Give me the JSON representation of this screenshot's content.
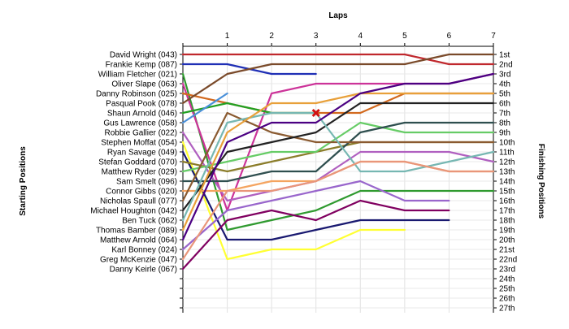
{
  "chart_data": {
    "type": "line",
    "title": "",
    "xlabel": "Laps",
    "ylabel_left": "Starting Positions",
    "ylabel_right": "Finishing Positions",
    "x": [
      0,
      1,
      2,
      3,
      4,
      5,
      6,
      7
    ],
    "x_tick_labels": [
      "1",
      "2",
      "3",
      "4",
      "5",
      "6",
      "7"
    ],
    "xlim": [
      0,
      7
    ],
    "ylim": [
      1,
      27
    ],
    "grid": true,
    "finishing_positions": [
      "1st",
      "2nd",
      "3rd",
      "4th",
      "5th",
      "6th",
      "7th",
      "8th",
      "9th",
      "10th",
      "11th",
      "12th",
      "13th",
      "14th",
      "15th",
      "16th",
      "17th",
      "18th",
      "19th",
      "20th",
      "21st",
      "22nd",
      "23rd",
      "24th",
      "25th",
      "26th",
      "27th"
    ],
    "series": [
      {
        "name": "David Wright (043)",
        "color": "#c0282d",
        "positions": [
          1,
          1,
          1,
          1,
          1,
          1,
          2,
          2
        ]
      },
      {
        "name": "Frankie Kemp (087)",
        "color": "#1f2fb5",
        "positions": [
          2,
          2,
          3,
          3
        ]
      },
      {
        "name": "William Fletcher (021)",
        "color": "#2f9a2f",
        "positions": [
          3,
          19,
          18,
          17,
          15,
          15,
          15,
          15
        ]
      },
      {
        "name": "Oliver Slape (063)",
        "color": "#cc3399",
        "positions": [
          4,
          17,
          5,
          4,
          4,
          4,
          4,
          3
        ]
      },
      {
        "name": "Danny Robinson (025)",
        "color": "#d2691e",
        "positions": [
          5,
          6,
          7,
          7,
          7,
          5,
          5,
          5
        ]
      },
      {
        "name": "Pasqual Pook (078)",
        "color": "#7a4a2a",
        "positions": [
          6,
          3,
          2,
          2,
          2,
          2,
          1,
          1
        ]
      },
      {
        "name": "Shaun Arnold (046)",
        "color": "#22a022",
        "positions": [
          7,
          6,
          7,
          7
        ]
      },
      {
        "name": "Gus Lawrence (058)",
        "color": "#4a90d9",
        "positions": [
          8,
          5
        ]
      },
      {
        "name": "Robbie Gallier (022)",
        "color": "#b060c0",
        "positions": [
          9,
          16,
          15,
          14,
          11,
          11,
          11,
          12
        ]
      },
      {
        "name": "Stephen Moffat (054)",
        "color": "#ffff33",
        "positions": [
          10,
          22,
          21,
          21,
          19,
          19
        ]
      },
      {
        "name": "Ryan Savage (049)",
        "color": "#191970",
        "positions": [
          11,
          20,
          20,
          19,
          18,
          18,
          18
        ]
      },
      {
        "name": "Stefan Goddard (070)",
        "color": "#8b7d2a",
        "positions": [
          12,
          13,
          12,
          11,
          10,
          10,
          10,
          10
        ]
      },
      {
        "name": "Matthew Ryder (029)",
        "color": "#66cc66",
        "positions": [
          13,
          12,
          11,
          11,
          8,
          9,
          9,
          9
        ]
      },
      {
        "name": "Sam Smelt (096)",
        "color": "#2f4f4f",
        "positions": [
          14,
          14,
          13,
          13,
          9,
          8,
          8,
          8
        ]
      },
      {
        "name": "Connor Gibbs (020)",
        "color": "#f4a460",
        "positions": [
          15,
          15,
          14,
          14,
          12,
          12,
          13,
          13
        ]
      },
      {
        "name": "Nicholas Spaull (077)",
        "color": "#8a5a30",
        "positions": [
          16,
          7,
          9,
          10,
          10,
          10,
          10,
          10
        ]
      },
      {
        "name": "Michael Houghton (042)",
        "color": "#222222",
        "positions": [
          17,
          11,
          10,
          9,
          6,
          6,
          6,
          6
        ]
      },
      {
        "name": "Ben Tuck (062)",
        "color": "#76b7b2",
        "positions": [
          18,
          8,
          7,
          7,
          13,
          13,
          12,
          11
        ]
      },
      {
        "name": "Thomas Bamber (089)",
        "color": "#e8a03a",
        "positions": [
          19,
          9,
          6,
          6,
          5,
          5,
          5,
          5
        ]
      },
      {
        "name": "Matthew Arnold (064)",
        "color": "#4b0082",
        "positions": [
          20,
          10,
          8,
          8,
          5,
          4,
          4,
          3
        ]
      },
      {
        "name": "Karl Bonney (024)",
        "color": "#9966cc",
        "positions": [
          21,
          17,
          16,
          15,
          14,
          16,
          16
        ]
      },
      {
        "name": "Greg McKenzie (047)",
        "color": "#e9967a",
        "positions": [
          22,
          15,
          15,
          14,
          12,
          12,
          13,
          13
        ]
      },
      {
        "name": "Danny Keirle (067)",
        "color": "#800060",
        "positions": [
          23,
          18,
          17,
          18,
          16,
          17,
          17
        ]
      }
    ],
    "retirements": [
      {
        "series": "Shaun Arnold (046)",
        "lap": 3,
        "position": 7
      }
    ]
  }
}
